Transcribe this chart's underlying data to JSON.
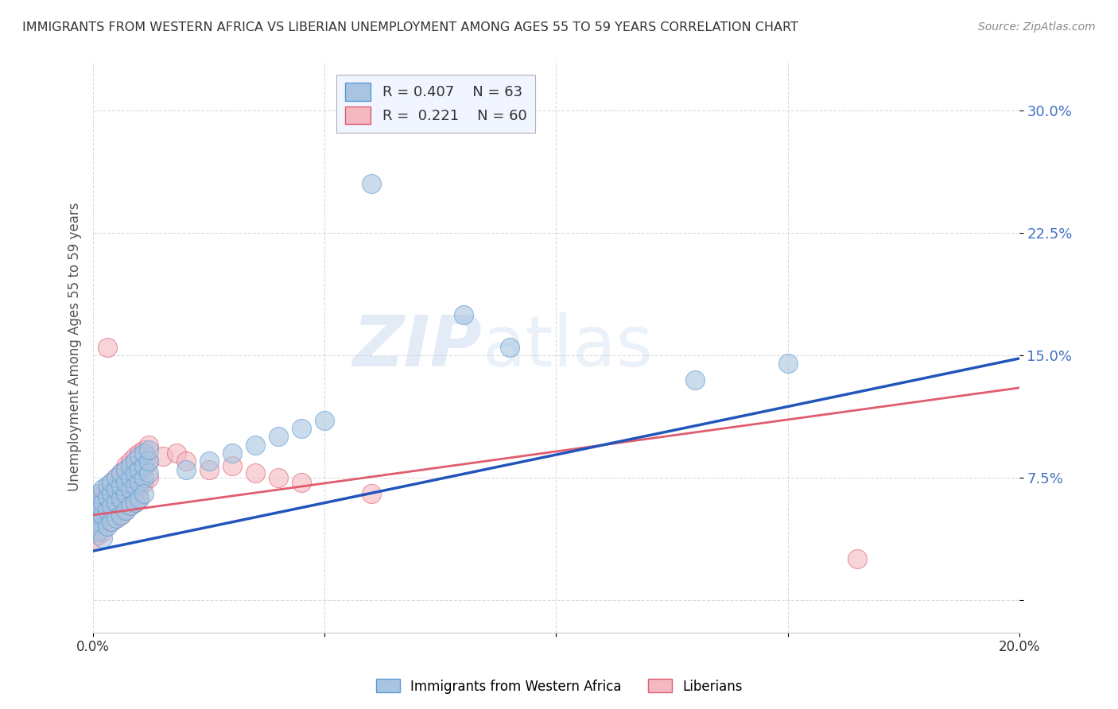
{
  "title": "IMMIGRANTS FROM WESTERN AFRICA VS LIBERIAN UNEMPLOYMENT AMONG AGES 55 TO 59 YEARS CORRELATION CHART",
  "source": "Source: ZipAtlas.com",
  "ylabel": "Unemployment Among Ages 55 to 59 years",
  "xlim": [
    0.0,
    0.2
  ],
  "ylim": [
    -0.02,
    0.33
  ],
  "yticks": [
    0.0,
    0.075,
    0.15,
    0.225,
    0.3
  ],
  "ytick_labels": [
    "",
    "7.5%",
    "15.0%",
    "22.5%",
    "30.0%"
  ],
  "xticks": [
    0.0,
    0.05,
    0.1,
    0.15,
    0.2
  ],
  "xtick_labels": [
    "0.0%",
    "",
    "",
    "",
    "20.0%"
  ],
  "blue_line_start": 0.03,
  "blue_line_end": 0.148,
  "pink_line_start": 0.052,
  "pink_line_end": 0.13,
  "series": [
    {
      "name": "Immigrants from Western Africa",
      "color": "#a8c4e0",
      "edge_color": "#5b9bd5",
      "R": 0.407,
      "N": 63,
      "line_color": "#2255bb",
      "line_style": "solid",
      "points": [
        [
          0.0,
          0.05
        ],
        [
          0.0,
          0.045
        ],
        [
          0.0,
          0.055
        ],
        [
          0.0,
          0.06
        ],
        [
          0.001,
          0.048
        ],
        [
          0.001,
          0.058
        ],
        [
          0.001,
          0.065
        ],
        [
          0.001,
          0.042
        ],
        [
          0.002,
          0.052
        ],
        [
          0.002,
          0.06
        ],
        [
          0.002,
          0.068
        ],
        [
          0.002,
          0.038
        ],
        [
          0.003,
          0.055
        ],
        [
          0.003,
          0.063
        ],
        [
          0.003,
          0.07
        ],
        [
          0.003,
          0.045
        ],
        [
          0.004,
          0.058
        ],
        [
          0.004,
          0.065
        ],
        [
          0.004,
          0.072
        ],
        [
          0.004,
          0.048
        ],
        [
          0.005,
          0.06
        ],
        [
          0.005,
          0.068
        ],
        [
          0.005,
          0.075
        ],
        [
          0.005,
          0.05
        ],
        [
          0.006,
          0.062
        ],
        [
          0.006,
          0.07
        ],
        [
          0.006,
          0.078
        ],
        [
          0.006,
          0.052
        ],
        [
          0.007,
          0.065
        ],
        [
          0.007,
          0.072
        ],
        [
          0.007,
          0.08
        ],
        [
          0.007,
          0.055
        ],
        [
          0.008,
          0.068
        ],
        [
          0.008,
          0.075
        ],
        [
          0.008,
          0.082
        ],
        [
          0.008,
          0.058
        ],
        [
          0.009,
          0.07
        ],
        [
          0.009,
          0.078
        ],
        [
          0.009,
          0.085
        ],
        [
          0.009,
          0.06
        ],
        [
          0.01,
          0.072
        ],
        [
          0.01,
          0.08
        ],
        [
          0.01,
          0.088
        ],
        [
          0.01,
          0.062
        ],
        [
          0.011,
          0.075
        ],
        [
          0.011,
          0.082
        ],
        [
          0.011,
          0.09
        ],
        [
          0.011,
          0.065
        ],
        [
          0.012,
          0.078
        ],
        [
          0.012,
          0.085
        ],
        [
          0.012,
          0.092
        ],
        [
          0.02,
          0.08
        ],
        [
          0.025,
          0.085
        ],
        [
          0.03,
          0.09
        ],
        [
          0.035,
          0.095
        ],
        [
          0.04,
          0.1
        ],
        [
          0.045,
          0.105
        ],
        [
          0.05,
          0.11
        ],
        [
          0.06,
          0.255
        ],
        [
          0.08,
          0.175
        ],
        [
          0.09,
          0.155
        ],
        [
          0.13,
          0.135
        ],
        [
          0.15,
          0.145
        ]
      ]
    },
    {
      "name": "Liberians",
      "color": "#f4b8c1",
      "edge_color": "#e05c6e",
      "R": 0.221,
      "N": 60,
      "line_color": "#e05c6e",
      "line_style": "solid",
      "points": [
        [
          0.0,
          0.058
        ],
        [
          0.0,
          0.052
        ],
        [
          0.0,
          0.045
        ],
        [
          0.0,
          0.038
        ],
        [
          0.001,
          0.062
        ],
        [
          0.001,
          0.055
        ],
        [
          0.001,
          0.048
        ],
        [
          0.001,
          0.04
        ],
        [
          0.002,
          0.065
        ],
        [
          0.002,
          0.058
        ],
        [
          0.002,
          0.05
        ],
        [
          0.002,
          0.042
        ],
        [
          0.003,
          0.155
        ],
        [
          0.003,
          0.068
        ],
        [
          0.003,
          0.06
        ],
        [
          0.003,
          0.052
        ],
        [
          0.004,
          0.072
        ],
        [
          0.004,
          0.065
        ],
        [
          0.004,
          0.055
        ],
        [
          0.004,
          0.048
        ],
        [
          0.005,
          0.075
        ],
        [
          0.005,
          0.068
        ],
        [
          0.005,
          0.058
        ],
        [
          0.005,
          0.05
        ],
        [
          0.006,
          0.078
        ],
        [
          0.006,
          0.07
        ],
        [
          0.006,
          0.06
        ],
        [
          0.006,
          0.052
        ],
        [
          0.007,
          0.082
        ],
        [
          0.007,
          0.072
        ],
        [
          0.007,
          0.062
        ],
        [
          0.007,
          0.055
        ],
        [
          0.008,
          0.085
        ],
        [
          0.008,
          0.075
        ],
        [
          0.008,
          0.065
        ],
        [
          0.008,
          0.058
        ],
        [
          0.009,
          0.088
        ],
        [
          0.009,
          0.078
        ],
        [
          0.009,
          0.068
        ],
        [
          0.009,
          0.06
        ],
        [
          0.01,
          0.09
        ],
        [
          0.01,
          0.08
        ],
        [
          0.01,
          0.07
        ],
        [
          0.01,
          0.062
        ],
        [
          0.011,
          0.092
        ],
        [
          0.011,
          0.082
        ],
        [
          0.011,
          0.072
        ],
        [
          0.012,
          0.095
        ],
        [
          0.012,
          0.085
        ],
        [
          0.012,
          0.075
        ],
        [
          0.015,
          0.088
        ],
        [
          0.018,
          0.09
        ],
        [
          0.02,
          0.085
        ],
        [
          0.025,
          0.08
        ],
        [
          0.03,
          0.082
        ],
        [
          0.035,
          0.078
        ],
        [
          0.04,
          0.075
        ],
        [
          0.045,
          0.072
        ],
        [
          0.165,
          0.025
        ],
        [
          0.06,
          0.065
        ]
      ]
    }
  ],
  "watermark_zip": "ZIP",
  "watermark_atlas": "atlas",
  "background_color": "#ffffff",
  "grid_color": "#cccccc",
  "title_color": "#333333",
  "axis_label_color": "#555555"
}
